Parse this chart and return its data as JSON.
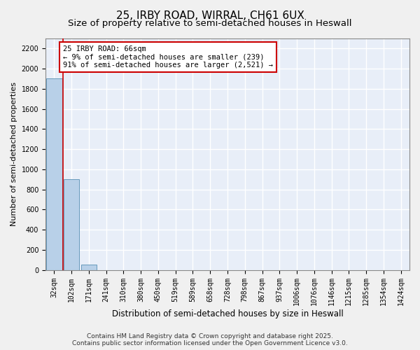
{
  "title": "25, IRBY ROAD, WIRRAL, CH61 6UX",
  "subtitle": "Size of property relative to semi-detached houses in Heswall",
  "xlabel": "Distribution of semi-detached houses by size in Heswall",
  "ylabel": "Number of semi-detached properties",
  "categories": [
    "32sqm",
    "102sqm",
    "171sqm",
    "241sqm",
    "310sqm",
    "380sqm",
    "450sqm",
    "519sqm",
    "589sqm",
    "658sqm",
    "728sqm",
    "798sqm",
    "867sqm",
    "937sqm",
    "1006sqm",
    "1076sqm",
    "1146sqm",
    "1215sqm",
    "1285sqm",
    "1354sqm",
    "1424sqm"
  ],
  "values": [
    1900,
    900,
    50,
    0,
    0,
    0,
    0,
    0,
    0,
    0,
    0,
    0,
    0,
    0,
    0,
    0,
    0,
    0,
    0,
    0,
    0
  ],
  "bar_color": "#b8d0e8",
  "bar_edge_color": "#6699bb",
  "annotation_text": "25 IRBY ROAD: 66sqm\n← 9% of semi-detached houses are smaller (239)\n91% of semi-detached houses are larger (2,521) →",
  "annotation_box_color": "#ffffff",
  "annotation_box_edge_color": "#cc0000",
  "vline_color": "#cc0000",
  "vline_x": 0.5,
  "ylim": [
    0,
    2300
  ],
  "yticks": [
    0,
    200,
    400,
    600,
    800,
    1000,
    1200,
    1400,
    1600,
    1800,
    2000,
    2200
  ],
  "background_color": "#e8eef8",
  "grid_color": "#ffffff",
  "fig_background": "#f0f0f0",
  "footer": "Contains HM Land Registry data © Crown copyright and database right 2025.\nContains public sector information licensed under the Open Government Licence v3.0.",
  "title_fontsize": 11,
  "subtitle_fontsize": 9.5,
  "xlabel_fontsize": 8.5,
  "ylabel_fontsize": 8,
  "tick_fontsize": 7,
  "annotation_fontsize": 7.5,
  "footer_fontsize": 6.5
}
